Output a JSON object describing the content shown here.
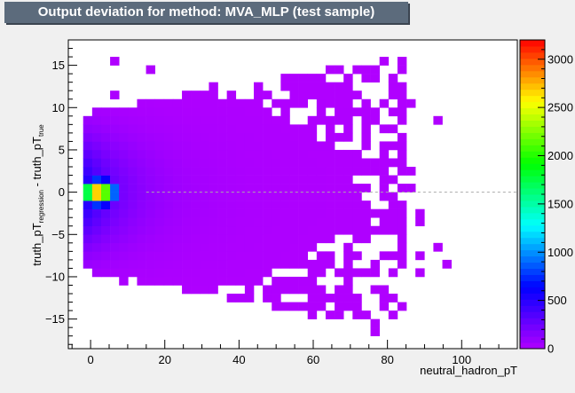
{
  "chart_data": {
    "type": "heatmap",
    "title": "Output deviation for method: MVA_MLP (test sample)",
    "xlabel": "neutral_hadron_pT",
    "ylabel_main": "truth_pT",
    "ylabel_sub1": "regression",
    "ylabel_mid": " - truth_pT",
    "ylabel_sub2": "true",
    "xlim": [
      -6,
      115
    ],
    "ylim": [
      -18.5,
      18
    ],
    "xticks": [
      0,
      20,
      40,
      60,
      80,
      100
    ],
    "yticks": [
      -15,
      -10,
      -5,
      0,
      5,
      10,
      15
    ],
    "zlim": [
      0,
      3200
    ],
    "zticks": [
      0,
      500,
      1000,
      1500,
      2000,
      2500,
      3000
    ],
    "peak": {
      "x": 2,
      "y": 0,
      "value": 3150
    },
    "bin_width_x": 2.42,
    "bin_width_y": 1,
    "reference_line_y": 0,
    "palette": [
      "#b000ff",
      "#5a00ff",
      "#0000ff",
      "#0080ff",
      "#00ffff",
      "#00ff80",
      "#00ff00",
      "#80ff00",
      "#ffff00",
      "#ff8000",
      "#ff0000"
    ]
  }
}
